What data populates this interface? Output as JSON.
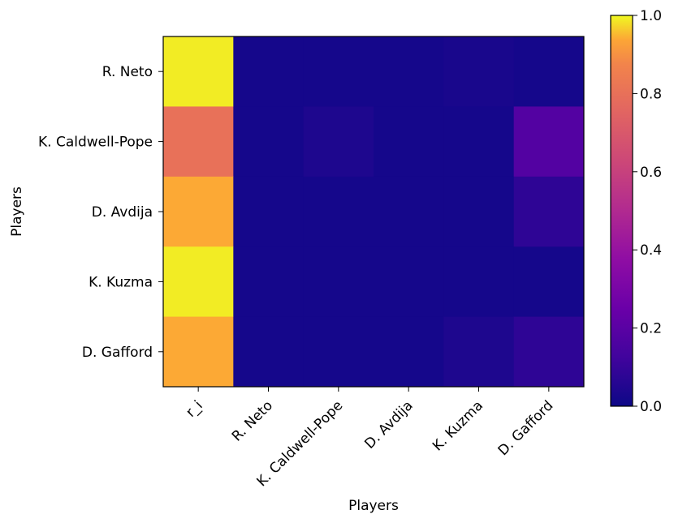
{
  "chart_data": {
    "type": "heatmap",
    "title": "",
    "xlabel": "Players",
    "ylabel": "Players",
    "x_categories": [
      "r_i",
      "R. Neto",
      "K. Caldwell-Pope",
      "D. Avdija",
      "K. Kuzma",
      "D. Gafford"
    ],
    "y_categories": [
      "R. Neto",
      "K. Caldwell-Pope",
      "D. Avdija",
      "K. Kuzma",
      "D. Gafford"
    ],
    "values": [
      [
        0.99,
        0.02,
        0.02,
        0.02,
        0.03,
        0.02
      ],
      [
        0.8,
        0.02,
        0.04,
        0.02,
        0.02,
        0.18
      ],
      [
        0.94,
        0.02,
        0.02,
        0.02,
        0.02,
        0.08
      ],
      [
        0.99,
        0.02,
        0.02,
        0.02,
        0.02,
        0.02
      ],
      [
        0.94,
        0.02,
        0.02,
        0.02,
        0.04,
        0.08
      ]
    ],
    "colormap": "plasma",
    "colorbar": {
      "range": [
        0.0,
        1.0
      ],
      "ticks": [
        0.0,
        0.2,
        0.4,
        0.6,
        0.8,
        1.0
      ],
      "tick_labels": [
        "0.0",
        "0.2",
        "0.4",
        "0.6",
        "0.8",
        "1.0"
      ]
    },
    "grid": false
  }
}
